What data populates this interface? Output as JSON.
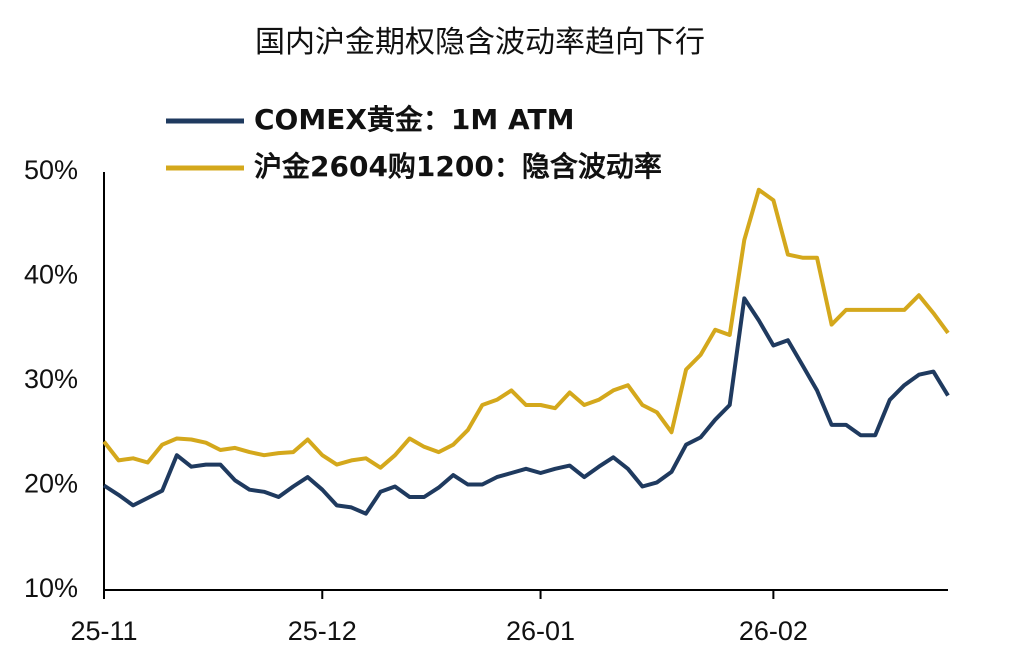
{
  "chart_data": {
    "type": "line",
    "title": "国内沪金期权隐含波动率趋向下行",
    "categories": [
      "25-11",
      null,
      null,
      null,
      null,
      null,
      null,
      null,
      null,
      null,
      null,
      null,
      null,
      null,
      null,
      "25-12",
      null,
      null,
      null,
      null,
      null,
      null,
      null,
      null,
      null,
      null,
      null,
      null,
      null,
      null,
      "26-01",
      null,
      null,
      null,
      null,
      null,
      null,
      null,
      null,
      null,
      null,
      null,
      null,
      null,
      null,
      null,
      "26-02",
      null,
      null,
      null,
      null,
      null,
      null,
      null,
      null,
      null,
      null,
      null,
      null
    ],
    "series": [
      {
        "name": "COMEX黄金：1M ATM",
        "color": "#1f3a5f",
        "values": [
          20.0,
          19.1,
          18.1,
          18.8,
          19.5,
          22.9,
          21.8,
          22.0,
          22.0,
          20.5,
          19.6,
          19.4,
          18.9,
          19.9,
          20.8,
          19.6,
          18.1,
          17.9,
          17.3,
          19.4,
          19.9,
          18.9,
          18.9,
          19.8,
          21.0,
          20.1,
          20.1,
          20.8,
          21.2,
          21.6,
          21.2,
          21.6,
          21.9,
          20.8,
          21.8,
          22.7,
          21.6,
          19.9,
          20.3,
          21.3,
          23.9,
          24.6,
          26.3,
          27.7,
          37.9,
          35.8,
          33.4,
          33.9,
          31.5,
          29.1,
          25.8,
          25.8,
          24.8,
          24.8,
          28.2,
          29.6,
          30.6,
          30.9,
          28.6
        ]
      },
      {
        "name": "沪金2604购1200：隐含波动率",
        "color": "#d4a81c",
        "values": [
          24.2,
          22.4,
          22.6,
          22.2,
          23.9,
          24.5,
          24.4,
          24.1,
          23.4,
          23.6,
          23.2,
          22.9,
          23.1,
          23.2,
          24.4,
          22.9,
          22.0,
          22.4,
          22.6,
          21.7,
          22.9,
          24.5,
          23.7,
          23.2,
          23.9,
          25.3,
          27.7,
          28.2,
          29.1,
          27.7,
          27.7,
          27.4,
          28.9,
          27.7,
          28.2,
          29.1,
          29.6,
          27.7,
          27.0,
          25.1,
          31.1,
          32.5,
          34.9,
          34.4,
          43.5,
          48.3,
          47.3,
          42.1,
          41.8,
          41.8,
          35.4,
          36.8,
          36.8,
          36.8,
          36.8,
          36.8,
          38.2,
          36.5,
          34.6
        ]
      }
    ],
    "ylim": [
      10,
      50
    ],
    "yticks": [
      {
        "value": 10,
        "label": "10%"
      },
      {
        "value": 20,
        "label": "20%"
      },
      {
        "value": 30,
        "label": "30%"
      },
      {
        "value": 40,
        "label": "40%"
      },
      {
        "value": 50,
        "label": "50%"
      }
    ]
  }
}
